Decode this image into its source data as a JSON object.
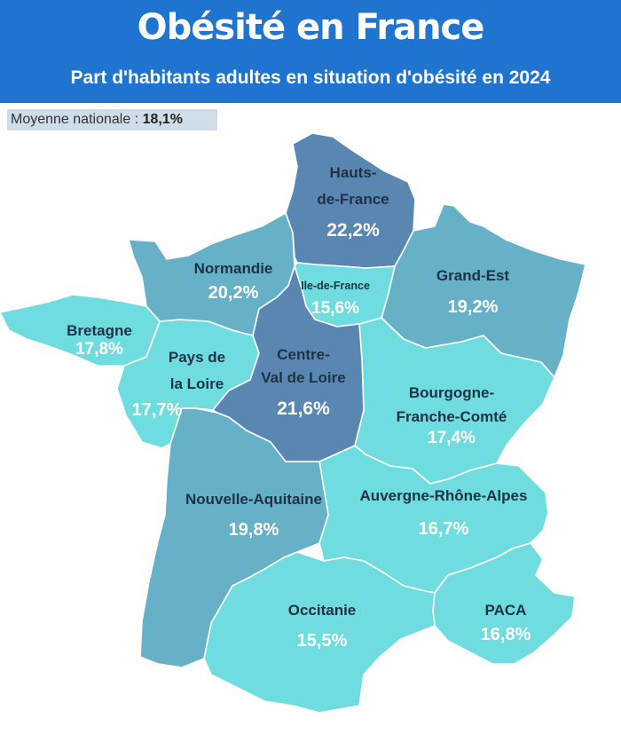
{
  "title": "Obésité en France",
  "subtitle": "Part d'habitants adultes en situation d'obésité en 2024",
  "national_average": {
    "label": "Moyenne nationale :",
    "value": "18,1%"
  },
  "colors": {
    "header": "#1f74cf",
    "level_high": "#5a87b2",
    "level_mid": "#66b0c8",
    "level_low": "#6fdcdf"
  },
  "regions": [
    {
      "id": "hauts-de-france",
      "name": "Hauts-de-France",
      "name_lines": [
        "Hauts-",
        "de-France"
      ],
      "value": "22,2%",
      "color": "#5a87b2"
    },
    {
      "id": "normandie",
      "name": "Normandie",
      "name_lines": [
        "Normandie"
      ],
      "value": "20,2%",
      "color": "#66b0c8"
    },
    {
      "id": "ile-de-france",
      "name": "Ile-de-France",
      "name_lines": [
        "Ile-de-France"
      ],
      "value": "15,6%",
      "color": "#6fdcdf"
    },
    {
      "id": "grand-est",
      "name": "Grand-Est",
      "name_lines": [
        "Grand-Est"
      ],
      "value": "19,2%",
      "color": "#66b0c8"
    },
    {
      "id": "bretagne",
      "name": "Bretagne",
      "name_lines": [
        "Bretagne"
      ],
      "value": "17,8%",
      "color": "#6fdcdf"
    },
    {
      "id": "pays-de-la-loire",
      "name": "Pays de la Loire",
      "name_lines": [
        "Pays de",
        "la Loire"
      ],
      "value": "17,7%",
      "color": "#6fdcdf"
    },
    {
      "id": "centre-val-de-loire",
      "name": "Centre-Val de Loire",
      "name_lines": [
        "Centre-",
        "Val de Loire"
      ],
      "value": "21,6%",
      "color": "#5a87b2"
    },
    {
      "id": "bourgogne-franche-comte",
      "name": "Bourgogne-Franche-Comté",
      "name_lines": [
        "Bourgogne-",
        "Franche-Comté"
      ],
      "value": "17,4%",
      "color": "#6fdcdf"
    },
    {
      "id": "nouvelle-aquitaine",
      "name": "Nouvelle-Aquitaine",
      "name_lines": [
        "Nouvelle-Aquitaine"
      ],
      "value": "19,8%",
      "color": "#66b0c8"
    },
    {
      "id": "auvergne-rhone-alpes",
      "name": "Auvergne-Rhône-Alpes",
      "name_lines": [
        "Auvergne-Rhône-Alpes"
      ],
      "value": "16,7%",
      "color": "#6fdcdf"
    },
    {
      "id": "occitanie",
      "name": "Occitanie",
      "name_lines": [
        "Occitanie"
      ],
      "value": "15,5%",
      "color": "#6fdcdf"
    },
    {
      "id": "paca",
      "name": "PACA",
      "name_lines": [
        "PACA"
      ],
      "value": "16,8%",
      "color": "#6fdcdf"
    }
  ]
}
